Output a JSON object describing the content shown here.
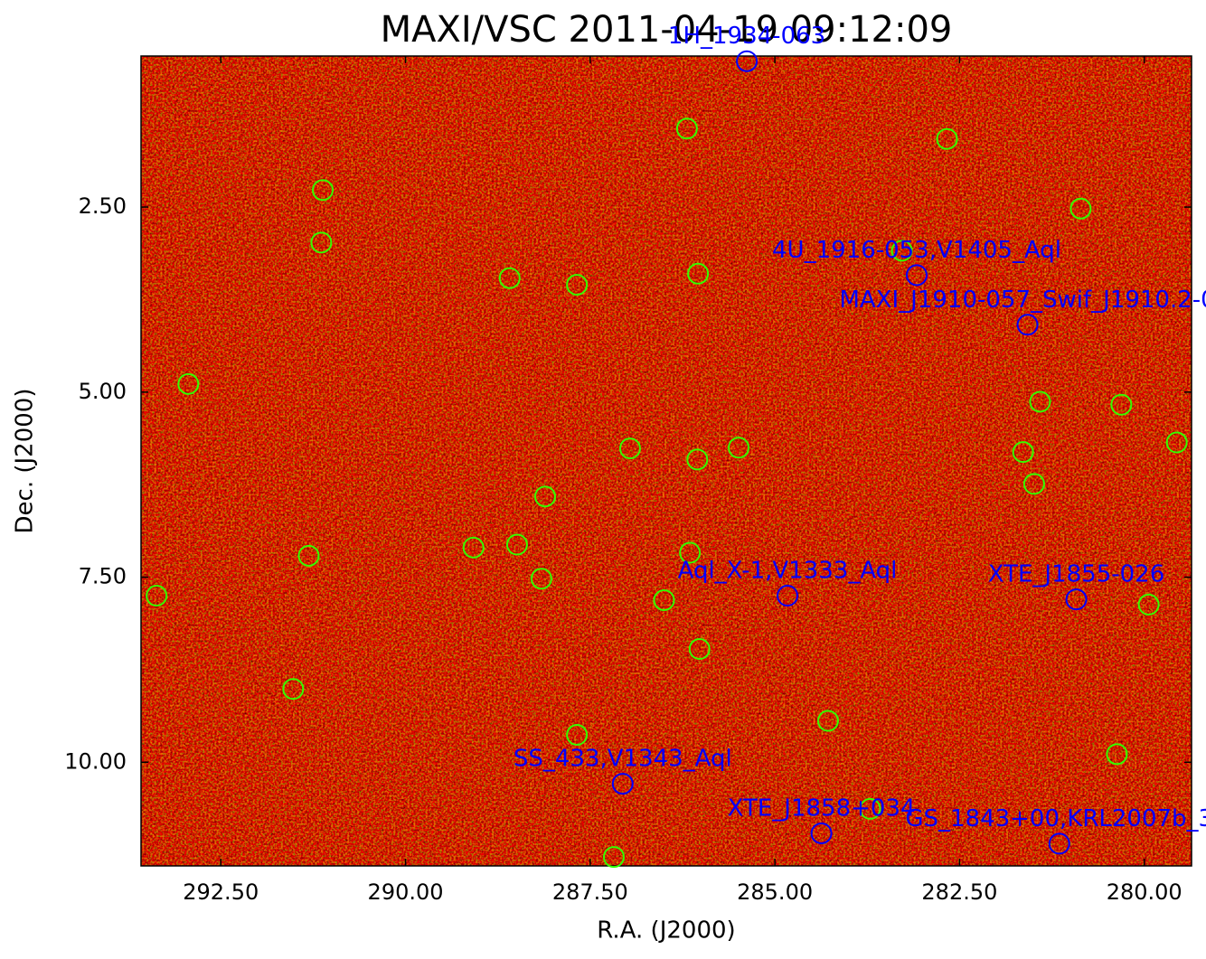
{
  "chart_data": {
    "type": "scatter",
    "title": "MAXI/VSC 2011-04-19 09:12:09",
    "xlabel": "R.A. (J2000)",
    "ylabel": "Dec. (J2000)",
    "xlim": [
      293.58,
      279.36
    ],
    "ylim": [
      11.4,
      0.46
    ],
    "xticks": [
      {
        "value": 292.5,
        "label": "292.50"
      },
      {
        "value": 290.0,
        "label": "290.00"
      },
      {
        "value": 287.5,
        "label": "287.50"
      },
      {
        "value": 285.0,
        "label": "285.00"
      },
      {
        "value": 282.5,
        "label": "282.50"
      },
      {
        "value": 280.0,
        "label": "280.00"
      }
    ],
    "yticks": [
      {
        "value": 2.5,
        "label": "2.50"
      },
      {
        "value": 5.0,
        "label": "5.00"
      },
      {
        "value": 7.5,
        "label": "7.50"
      },
      {
        "value": 10.0,
        "label": "10.00"
      }
    ],
    "grid": false,
    "series": [
      {
        "color": "#33ff00",
        "x": [
          286.19,
          282.67,
          291.12,
          280.86,
          291.14,
          288.59,
          287.68,
          286.04,
          283.28,
          292.94,
          281.41,
          280.31,
          279.56,
          286.96,
          286.05,
          285.49,
          281.64,
          281.49,
          288.11,
          291.31,
          289.08,
          288.49,
          286.15,
          288.16,
          293.37,
          286.5,
          279.94,
          286.02,
          291.52,
          284.28,
          287.68,
          280.37,
          283.71,
          287.18
        ],
        "values": [
          1.44,
          1.58,
          2.27,
          2.52,
          2.98,
          3.46,
          3.55,
          3.4,
          3.09,
          4.89,
          5.13,
          5.17,
          5.68,
          5.76,
          5.91,
          5.75,
          5.81,
          6.24,
          6.41,
          7.21,
          7.1,
          7.06,
          7.17,
          7.52,
          7.75,
          7.81,
          7.87,
          8.47,
          9.01,
          9.44,
          9.63,
          9.89,
          10.63,
          11.28
        ]
      },
      {
        "color": "#0000ff",
        "labels": [
          "1H_1934-063",
          "4U_1916-053,V1405_Aql",
          "MAXI_J1910-057_Swif_J1910.2-0",
          "Aql_X-1,V1333_Aql",
          "XTE_J1855-026",
          "SS_433,V1343_Aql",
          "XTE_J1858+034",
          "GS_1843+00,KRL2007b_3"
        ],
        "x": [
          285.38,
          283.08,
          281.58,
          284.83,
          280.92,
          287.06,
          284.37,
          281.15
        ],
        "values": [
          0.53,
          3.42,
          4.09,
          7.75,
          7.8,
          10.29,
          10.96,
          11.1
        ]
      }
    ]
  }
}
